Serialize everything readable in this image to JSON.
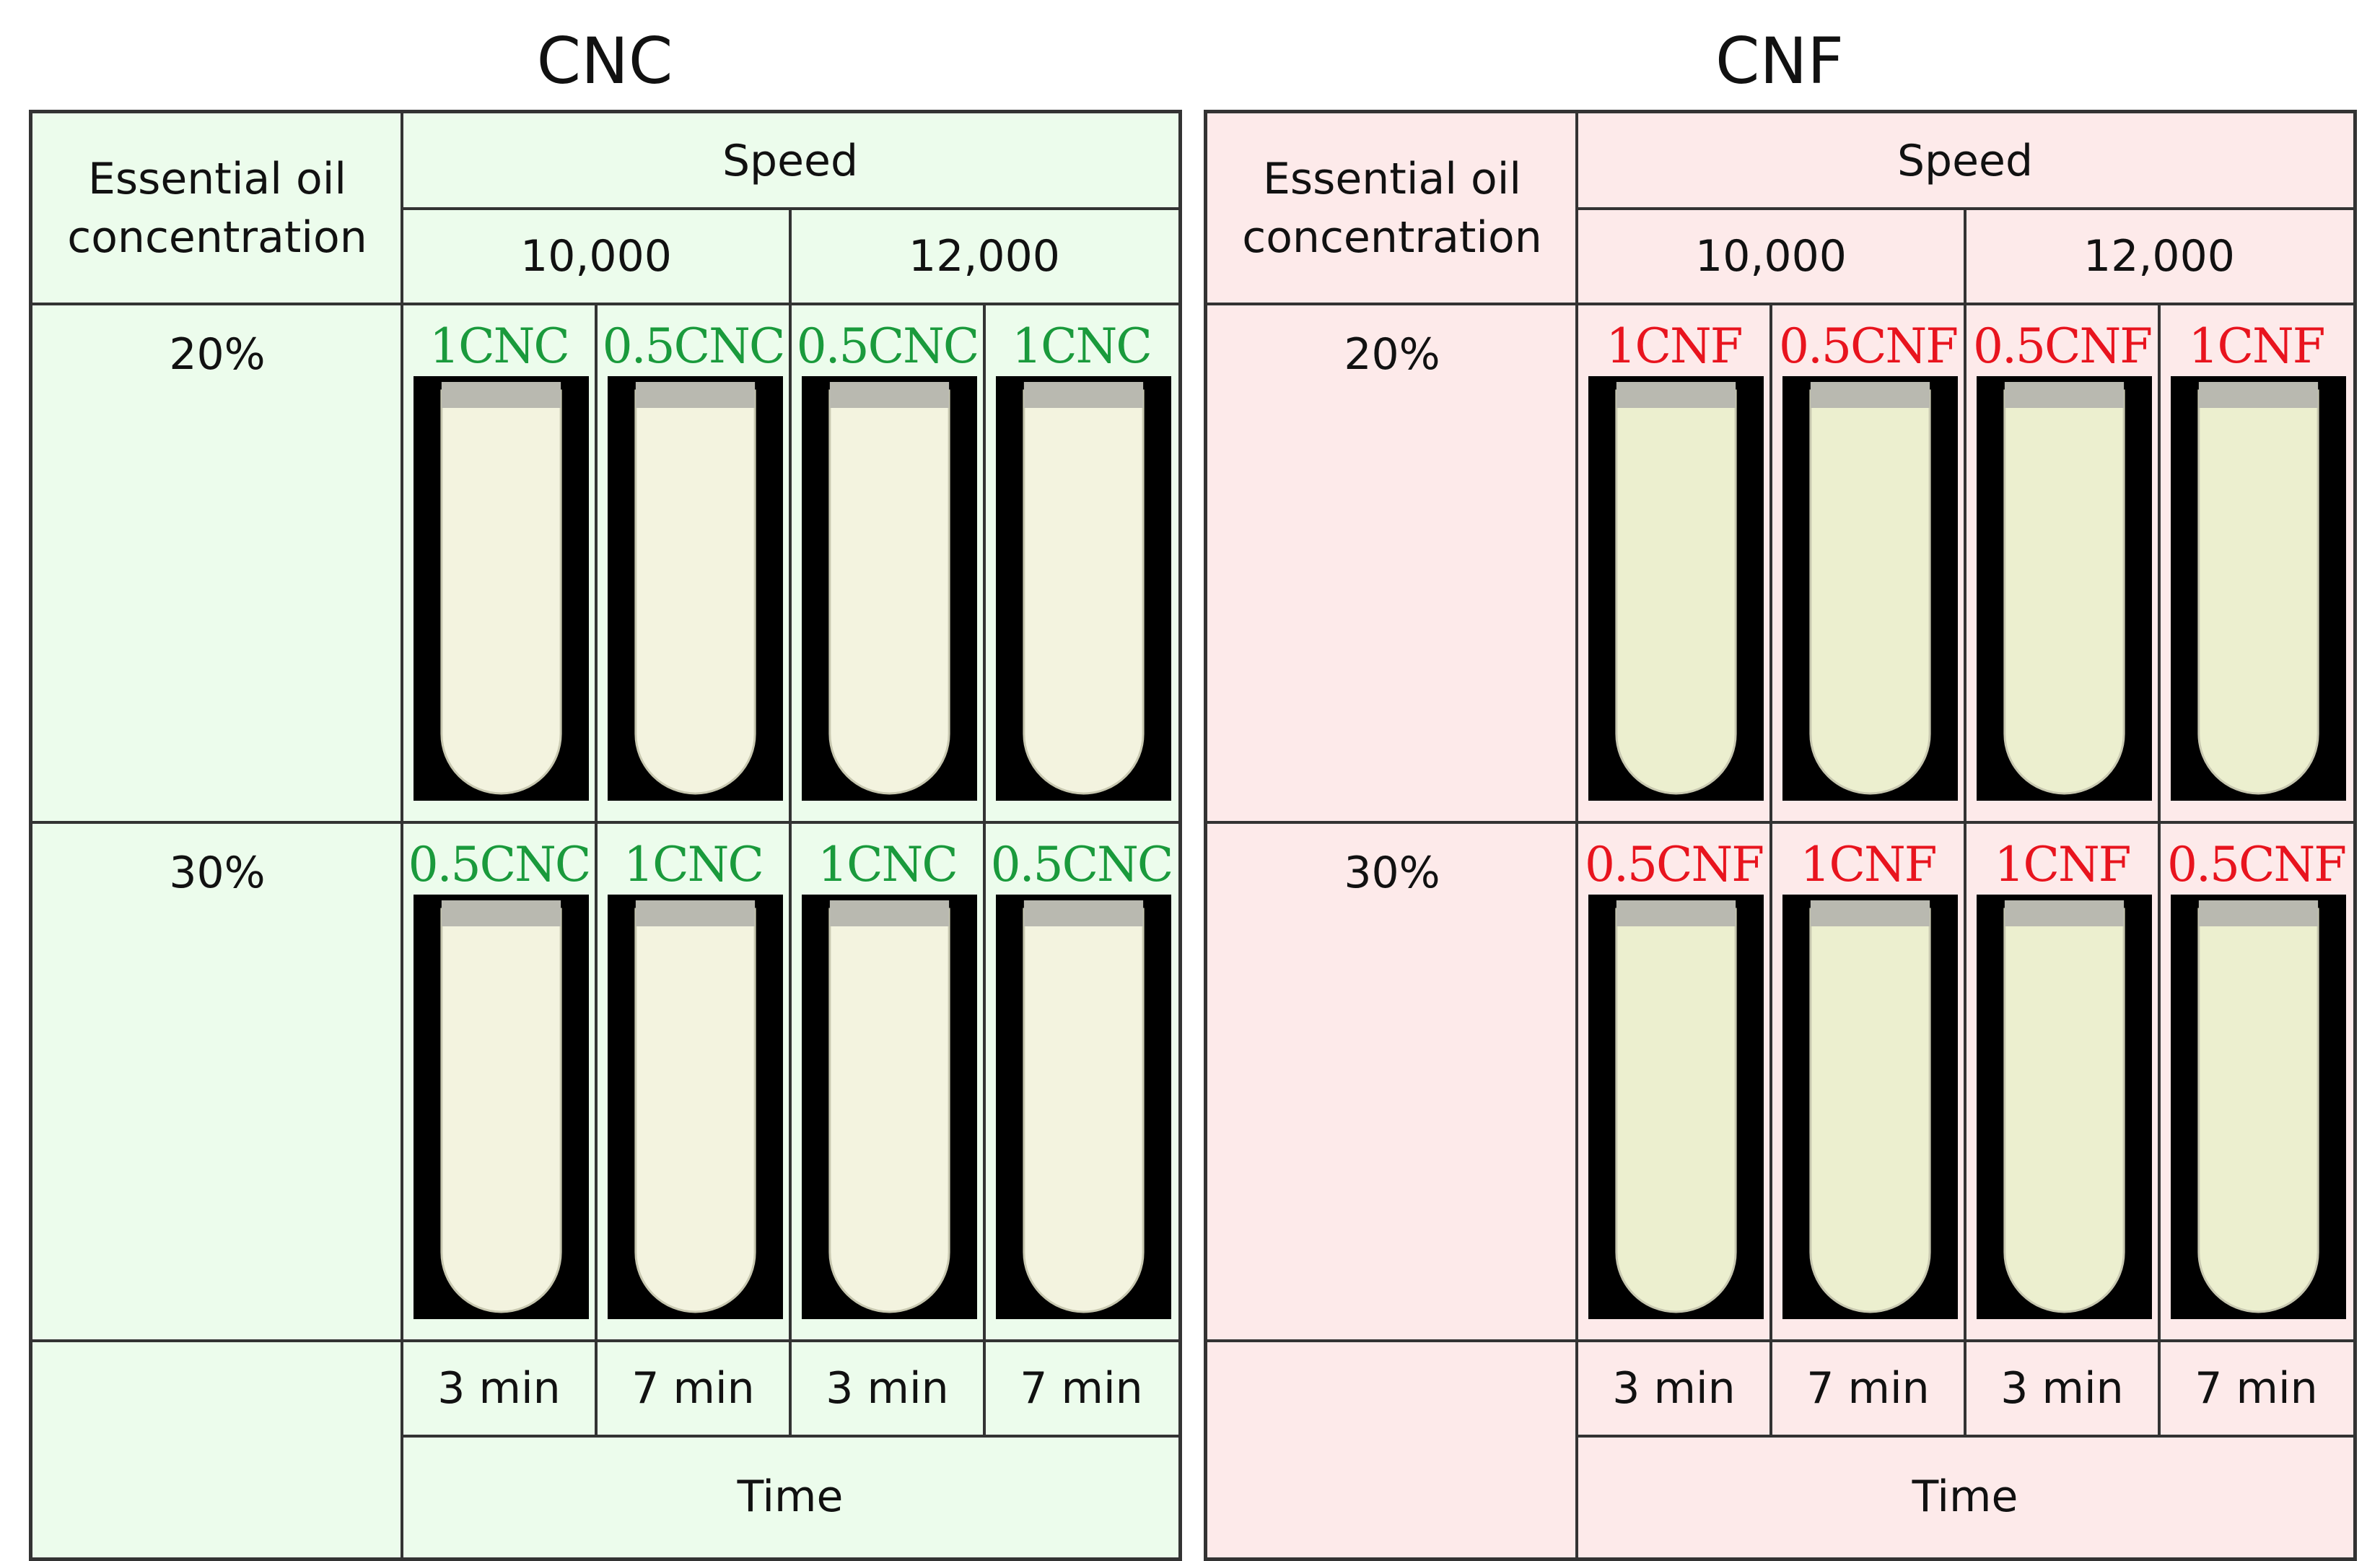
{
  "panels": [
    {
      "title": "CNC",
      "row_header": "Essential oil concentration",
      "speed_label": "Speed",
      "speeds": [
        "10,000",
        "12,000"
      ],
      "rows": [
        {
          "concentration": "20%",
          "samples": [
            "1CNC",
            "0.5CNC",
            "0.5CNC",
            "1CNC"
          ]
        },
        {
          "concentration": "30%",
          "samples": [
            "0.5CNC",
            "1CNC",
            "1CNC",
            "0.5CNC"
          ]
        }
      ],
      "times": [
        "3 min",
        "7 min",
        "3 min",
        "7 min"
      ],
      "time_label": "Time",
      "bg_color": "#ecfcec",
      "label_color": "#1a9a3c"
    },
    {
      "title": "CNF",
      "row_header": "Essential oil concentration",
      "speed_label": "Speed",
      "speeds": [
        "10,000",
        "12,000"
      ],
      "rows": [
        {
          "concentration": "20%",
          "samples": [
            "1CNF",
            "0.5CNF",
            "0.5CNF",
            "1CNF"
          ]
        },
        {
          "concentration": "30%",
          "samples": [
            "0.5CNF",
            "1CNF",
            "1CNF",
            "0.5CNF"
          ]
        }
      ],
      "times": [
        "3 min",
        "7 min",
        "3 min",
        "7 min"
      ],
      "time_label": "Time",
      "bg_color": "#fdeaea",
      "label_color": "#e8141e"
    }
  ],
  "colors": {
    "border": "#333333",
    "tube_cnc": "#f3f3df",
    "tube_cnf": "#ecefcf",
    "photo_bg": "#000000"
  }
}
